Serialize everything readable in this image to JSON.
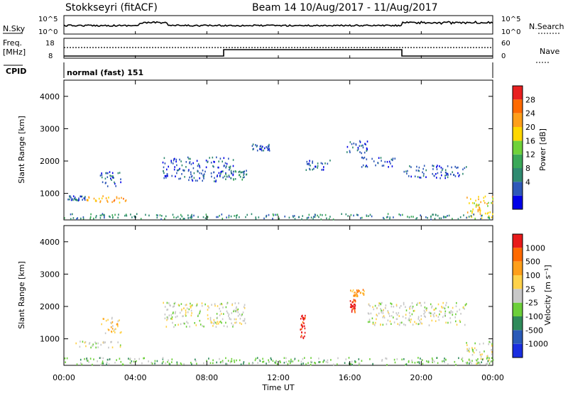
{
  "header": {
    "title": "Stokkseyri (fitACF)",
    "beam_info": "Beam 14  10/Aug/2017 - 11/Aug/2017"
  },
  "status_panels": {
    "nsky_label": "N.Sky",
    "nsearch_label": "N.Search",
    "nsky_ticks": [
      "10^5",
      "10^0"
    ],
    "freq_label_line1": "Freq.",
    "freq_label_line2": "[MHz]",
    "freq_ticks": [
      "18",
      "8"
    ],
    "nave_label": "Nave",
    "nave_ticks": [
      "60",
      "0"
    ],
    "cpid_label": "CPID",
    "cpid_text": "normal (fast) 151"
  },
  "colors": {
    "power_scale": [
      "#0000e8",
      "#2e58b8",
      "#2f8a70",
      "#3aa858",
      "#6fd23a",
      "#ffd700",
      "#ff9f1a",
      "#ff6a00",
      "#e82020"
    ],
    "velocity_scale": [
      "#1a2ee0",
      "#2a5ab8",
      "#2f8a5a",
      "#6ccf3a",
      "#c8c8c8",
      "#ffd24a",
      "#ff9f1a",
      "#ff6a00",
      "#e81a1a"
    ],
    "ground_scatter": "#bfbfbf"
  },
  "chart_data": [
    {
      "type": "heatmap",
      "panel": "power",
      "ylabel": "Slant Range [km]",
      "yticks": [
        "4000",
        "3000",
        "2000",
        "1000"
      ],
      "xticks": [
        "00:00",
        "04:00",
        "08:00",
        "12:00",
        "16:00",
        "20:00",
        "00:00"
      ],
      "xlim_hours": [
        0,
        24
      ],
      "ylim_km": [
        180,
        4500
      ],
      "colorbar_label": "Power [dB]",
      "colorbar_ticks": [
        "28",
        "24",
        "20",
        "16",
        "12",
        "8",
        "4"
      ],
      "echo_regions": [
        {
          "t0": 1.2,
          "t1": 3.5,
          "r0": 700,
          "r1": 900,
          "level": 6
        },
        {
          "t0": 0.1,
          "t1": 1.2,
          "r0": 750,
          "r1": 900,
          "level": 1
        },
        {
          "t0": 2.0,
          "t1": 3.2,
          "r0": 1150,
          "r1": 1650,
          "level": 1
        },
        {
          "t0": 5.5,
          "t1": 9.5,
          "r0": 1350,
          "r1": 2100,
          "level": 1
        },
        {
          "t0": 9.0,
          "t1": 10.2,
          "r0": 1400,
          "r1": 1700,
          "level": 2
        },
        {
          "t0": 10.5,
          "t1": 11.5,
          "r0": 2300,
          "r1": 2500,
          "level": 1
        },
        {
          "t0": 13.5,
          "t1": 15.0,
          "r0": 1700,
          "r1": 2000,
          "level": 1
        },
        {
          "t0": 15.8,
          "t1": 17.0,
          "r0": 2200,
          "r1": 2600,
          "level": 1
        },
        {
          "t0": 16.5,
          "t1": 18.5,
          "r0": 1800,
          "r1": 2100,
          "level": 1
        },
        {
          "t0": 19.0,
          "t1": 22.5,
          "r0": 1450,
          "r1": 1850,
          "level": 1
        },
        {
          "t0": 22.5,
          "t1": 24.0,
          "r0": 180,
          "r1": 900,
          "level": 5
        },
        {
          "t0": 0.0,
          "t1": 24.0,
          "r0": 180,
          "r1": 350,
          "level": 2
        }
      ]
    },
    {
      "type": "heatmap",
      "panel": "velocity",
      "ylabel": "Slant Range [km]",
      "yticks": [
        "4000",
        "3000",
        "2000",
        "1000"
      ],
      "xticks": [
        "00:00",
        "04:00",
        "08:00",
        "12:00",
        "16:00",
        "20:00",
        "00:00"
      ],
      "xlabel": "Time UT",
      "xlim_hours": [
        0,
        24
      ],
      "ylim_km": [
        180,
        4500
      ],
      "colorbar_label": "Velocity [m s⁻¹]",
      "colorbar_ticks": [
        "1000",
        "500",
        "100",
        "25",
        "-25",
        "-100",
        "-500",
        "-1000"
      ],
      "echo_regions": [
        {
          "t0": 0.5,
          "t1": 3.5,
          "r0": 700,
          "r1": 900,
          "level": 4
        },
        {
          "t0": 2.0,
          "t1": 3.2,
          "r0": 1150,
          "r1": 1650,
          "level": 5
        },
        {
          "t0": 5.5,
          "t1": 10.2,
          "r0": 1350,
          "r1": 2100,
          "level": 4
        },
        {
          "t0": 13.2,
          "t1": 13.5,
          "r0": 1000,
          "r1": 1700,
          "level": 8
        },
        {
          "t0": 16.0,
          "t1": 16.8,
          "r0": 2300,
          "r1": 2500,
          "level": 6
        },
        {
          "t0": 16.0,
          "t1": 16.3,
          "r0": 1800,
          "r1": 2200,
          "level": 8
        },
        {
          "t0": 17.0,
          "t1": 22.5,
          "r0": 1400,
          "r1": 2100,
          "level": 4
        },
        {
          "t0": 22.5,
          "t1": 24.0,
          "r0": 180,
          "r1": 900,
          "level": 4
        },
        {
          "t0": 0.0,
          "t1": 24.0,
          "r0": 180,
          "r1": 400,
          "level": 3
        }
      ]
    }
  ]
}
